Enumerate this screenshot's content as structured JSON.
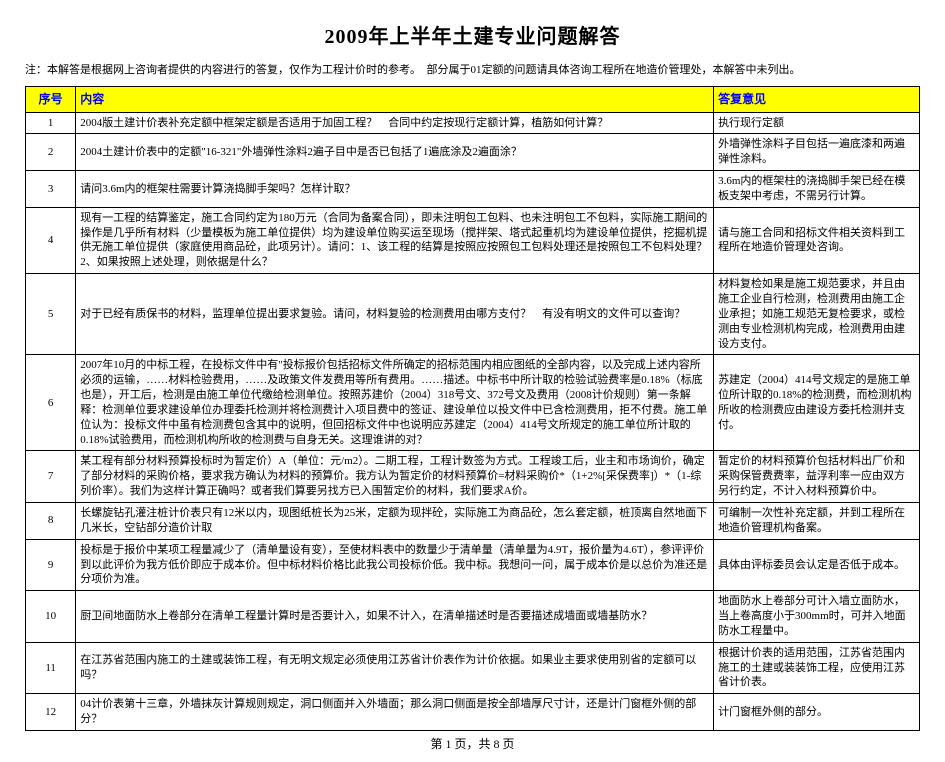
{
  "title": "2009年上半年土建专业问题解答",
  "note": "注：本解答是根据网上咨询者提供的内容进行的答复，仅作为工程计价时的参考。　部分属于01定额的问题请具体咨询工程所在地造价管理处，本解答中未列出。",
  "headers": {
    "num": "序号",
    "content": "内容",
    "answer": "答复意见"
  },
  "rows": [
    {
      "num": "1",
      "content": "2004版土建计价表补充定额中框架定额是否适用于加固工程？　合同中约定按现行定额计算，植筋如何计算？",
      "answer": "执行现行定额"
    },
    {
      "num": "2",
      "content": "2004土建计价表中的定额\"16-321\"外墙弹性涂料2遍子目中是否已包括了1遍底涂及2遍面涂？",
      "answer": "外墙弹性涂料子目包括一遍底漆和两遍弹性涂料。"
    },
    {
      "num": "3",
      "content": "请问3.6m内的框架柱需要计算浇捣脚手架吗？怎样计取？",
      "answer": "3.6m内的框架柱的浇捣脚手架已经在模板支架中考虑，不需另行计算。"
    },
    {
      "num": "4",
      "content": "现有一工程的结算鉴定，施工合同约定为180万元（合同为备案合同），即未注明包工包料、也未注明包工不包料，实际施工期间的操作是几乎所有材料（少量模板为施工单位提供）均为建设单位购买运至现场（搅拌架、塔式起重机均为建设单位提供，挖掘机提供无施工单位提供（家庭使用商品砼，此项另计）。请问：1、该工程的结算是按照应按照包工包料处理还是按照包工不包料处理？2、如果按照上述处理，则依据是什么？",
      "answer": "请与施工合同和招标文件相关资料到工程所在地造价管理处咨询。"
    },
    {
      "num": "5",
      "content": "对于已经有质保书的材料，监理单位提出要求复验。请问，材料复验的检测费用由哪方支付？　有没有明文的文件可以查询？",
      "answer": "材料复检如果是施工规范要求，并且由施工企业自行检测，检测费用由施工企业承担；如施工规范无复检要求，或检测由专业检测机构完成，检测费用由建设方支付。"
    },
    {
      "num": "6",
      "content": "2007年10月的中标工程，在投标文件中有\"投标报价包括招标文件所确定的招标范围内相应图纸的全部内容，以及完成上述内容所必须的运输，……材料检验费用，……及政策文件发费用等所有费用。……描述。中标书中所计取的检验试验费率是0.18%（标底也是），开工后，检测是由施工单位代缴给检测单位。按照苏建价（2004）318号文、372号文及费用（2008计价规则）第一条解释：检测单位要求建设单位办理委托检测并将检测费计入项目费中的签证、建设单位以投文件中已含检测费用，拒不付费。施工单位认为：投标文件中虽有检测费包含其中的说明，但回招标文件中也说明应苏建定（2004）414号文所规定的施工单位所计取的0.18%试验费用，而检测机构所收的检测费与自身无关。这理谁讲的对？",
      "answer": "苏建定（2004）414号文规定的是施工单位所计取的0.18%的检测费，而检测机构所收的检测费应由建设方委托检测并支付。"
    },
    {
      "num": "7",
      "content": "某工程有部分材料预算投标时为暂定价）A（单位：元/m2）。二期工程，工程计数签为方式。工程竣工后，业主和市场询价，确定了部分材料的采购价格，要求我方确认为材料的预算价。我方认为暂定价的材料预算价=材料采购价*（1+2%[采保费率]）*（1-综列价率）。我们为这样计算正确吗？或者我们算要另找方已入围暂定价的材料，我们要求A价。",
      "answer": "暂定价的材料预算价包括材料出厂价和采购保管费费率，益浮利率一应由双方另行约定，不计入材料预算价中。"
    },
    {
      "num": "8",
      "content": "长螺旋钻孔灌注桩计价表只有12米以内，现图纸桩长为25米，定额为现拌砼，实际施工为商品砼，怎么套定额，桩顶离自然地面下几米长，空钻部分造价计取",
      "answer": "可编制一次性补充定额，并到工程所在地造价管理机构备案。"
    },
    {
      "num": "9",
      "content": "投标是于报价中某项工程量减少了（清单量设有变），至使材料表中的数量少于清单量（清单量为4.9T，报价量为4.6T），参评评价到以此评价为我方低价即应于成本价。但中标材料价格比此我公司投标价低。我中标。我想问一问，属于成本价是以总价为准还是分项价为准。",
      "answer": "具体由评标委员会认定是否低于成本。"
    },
    {
      "num": "10",
      "content": "厨卫间地面防水上卷部分在清单工程量计算时是否要计入，如果不计入，在清单描述时是否要描述成墙面或墙基防水？",
      "answer": "地面防水上卷部分可计入墙立面防水，当上卷高度小于300mm时，可并入地面防水工程量中。"
    },
    {
      "num": "11",
      "content": "在江苏省范围内施工的土建或装饰工程，有无明文规定必须使用江苏省计价表作为计价依据。如果业主要求使用别省的定额可以吗？",
      "answer": "根据计价表的适用范围，江苏省范围内施工的土建或装装饰工程，应使用江苏省计价表。"
    },
    {
      "num": "12",
      "content": "04计价表第十三章，外墙抹灰计算规则规定，洞口侧面并入外墙面；那么洞口侧面是按全部墙厚尺寸计，还是计门窗框外侧的部分？",
      "answer": "计门窗框外侧的部分。"
    }
  ],
  "footer": "第 1 页，共 8 页",
  "style": {
    "header_bg": "#ffff00",
    "header_fg": "#0000ff",
    "border_color": "#000000",
    "body_fontsize": 11,
    "title_fontsize": 20
  }
}
